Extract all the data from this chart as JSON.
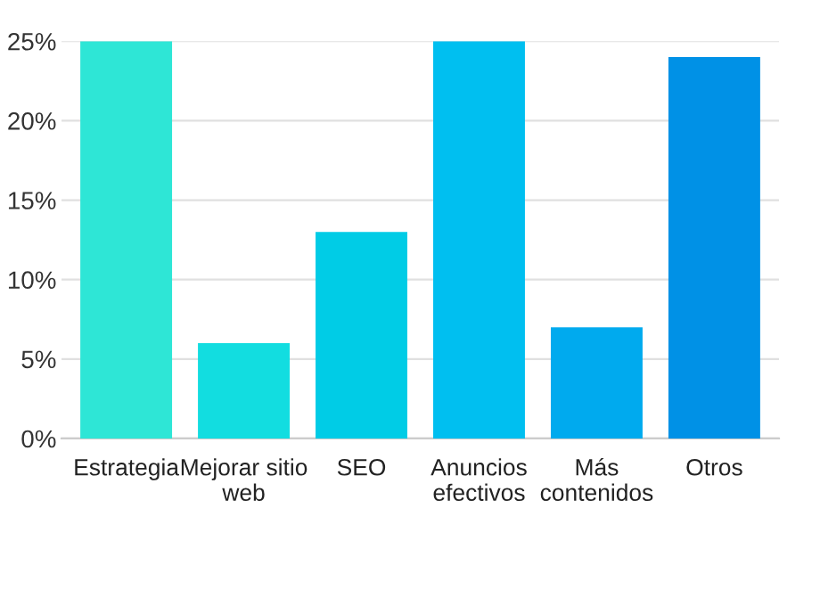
{
  "chart_data": {
    "type": "bar",
    "categories": [
      "Estrategia",
      "Mejorar sitio\nweb",
      "SEO",
      "Anuncios\nefectivos",
      "Más\ncontenidos",
      "Otros"
    ],
    "values": [
      25,
      6,
      13,
      25,
      7,
      24
    ],
    "colors": [
      "#2ee6d6",
      "#12dde0",
      "#00cce6",
      "#00bff0",
      "#00aaee",
      "#0091e6"
    ],
    "ylim": [
      0,
      25
    ],
    "yticks": [
      {
        "value": 0,
        "label": "0%"
      },
      {
        "value": 5,
        "label": "5%"
      },
      {
        "value": 10,
        "label": "10%"
      },
      {
        "value": 15,
        "label": "15%"
      },
      {
        "value": 20,
        "label": "20%"
      },
      {
        "value": 25,
        "label": "25%"
      }
    ],
    "grid": "y"
  }
}
